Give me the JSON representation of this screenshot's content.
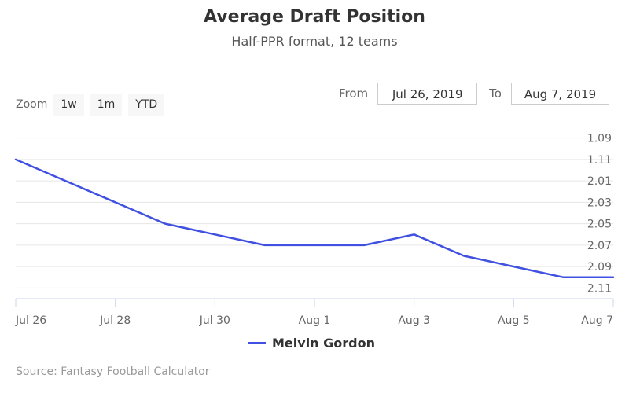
{
  "title": "Average Draft Position",
  "subtitle": "Half-PPR format, 12 teams",
  "zoom": {
    "label": "Zoom",
    "buttons": [
      "1w",
      "1m",
      "YTD"
    ]
  },
  "range": {
    "from_label": "From",
    "from_value": "Jul 26, 2019",
    "to_label": "To",
    "to_value": "Aug 7, 2019"
  },
  "source": "Source: Fantasy Football Calculator",
  "colors": {
    "series": "#4050e0",
    "axis": "#ccd6eb",
    "grid": "#e6e6e6"
  },
  "chart_data": {
    "type": "line",
    "x_axis_type": "date",
    "xlim": [
      "2019-07-26",
      "2019-08-07"
    ],
    "x_ticks": [
      {
        "date": "2019-07-26",
        "label": "Jul 26"
      },
      {
        "date": "2019-07-28",
        "label": "Jul 28"
      },
      {
        "date": "2019-07-30",
        "label": "Jul 30"
      },
      {
        "date": "2019-08-01",
        "label": "Aug 1"
      },
      {
        "date": "2019-08-03",
        "label": "Aug 3"
      },
      {
        "date": "2019-08-05",
        "label": "Aug 5"
      },
      {
        "date": "2019-08-07",
        "label": "Aug 7"
      }
    ],
    "ylim": [
      1.08,
      2.12
    ],
    "y_reversed": true,
    "y_ticks": [
      "1.09",
      "1.11",
      "2.01",
      "2.03",
      "2.05",
      "2.07",
      "2.09",
      "2.11"
    ],
    "grid": true,
    "legend_position": "bottom-center",
    "series": [
      {
        "name": "Melvin Gordon",
        "x": [
          "2019-07-26",
          "2019-07-27",
          "2019-07-28",
          "2019-07-29",
          "2019-07-30",
          "2019-07-31",
          "2019-08-01",
          "2019-08-02",
          "2019-08-03",
          "2019-08-04",
          "2019-08-05",
          "2019-08-06",
          "2019-08-07"
        ],
        "y": [
          1.11,
          1.13,
          1.145,
          1.165,
          1.18,
          1.185,
          1.187,
          1.192,
          2.06,
          2.08,
          2.09,
          2.1,
          2.105
        ]
      }
    ]
  }
}
